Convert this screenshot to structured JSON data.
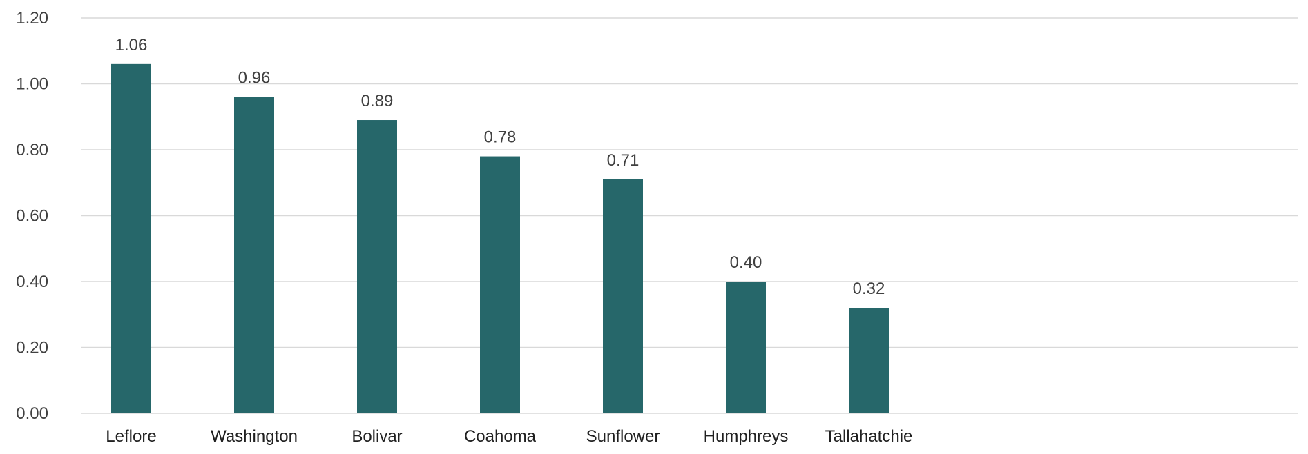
{
  "chart_data": {
    "type": "bar",
    "categories": [
      "Leflore",
      "Washington",
      "Bolivar",
      "Coahoma",
      "Sunflower",
      "Humphreys",
      "Tallahatchie"
    ],
    "values": [
      1.06,
      0.96,
      0.89,
      0.78,
      0.71,
      0.4,
      0.32
    ],
    "data_labels": [
      "1.06",
      "0.96",
      "0.89",
      "0.78",
      "0.71",
      "0.40",
      "0.32"
    ],
    "ylim": [
      0,
      1.2
    ],
    "yticks": [
      0,
      0.2,
      0.4,
      0.6,
      0.8,
      1.0,
      1.2
    ],
    "ytick_labels": [
      "0.00",
      "0.20",
      "0.40",
      "0.60",
      "0.80",
      "1.00",
      "1.20"
    ],
    "grid": true,
    "legend": "none",
    "bar_color": "#26676A",
    "title": "",
    "xlabel": "",
    "ylabel": ""
  }
}
